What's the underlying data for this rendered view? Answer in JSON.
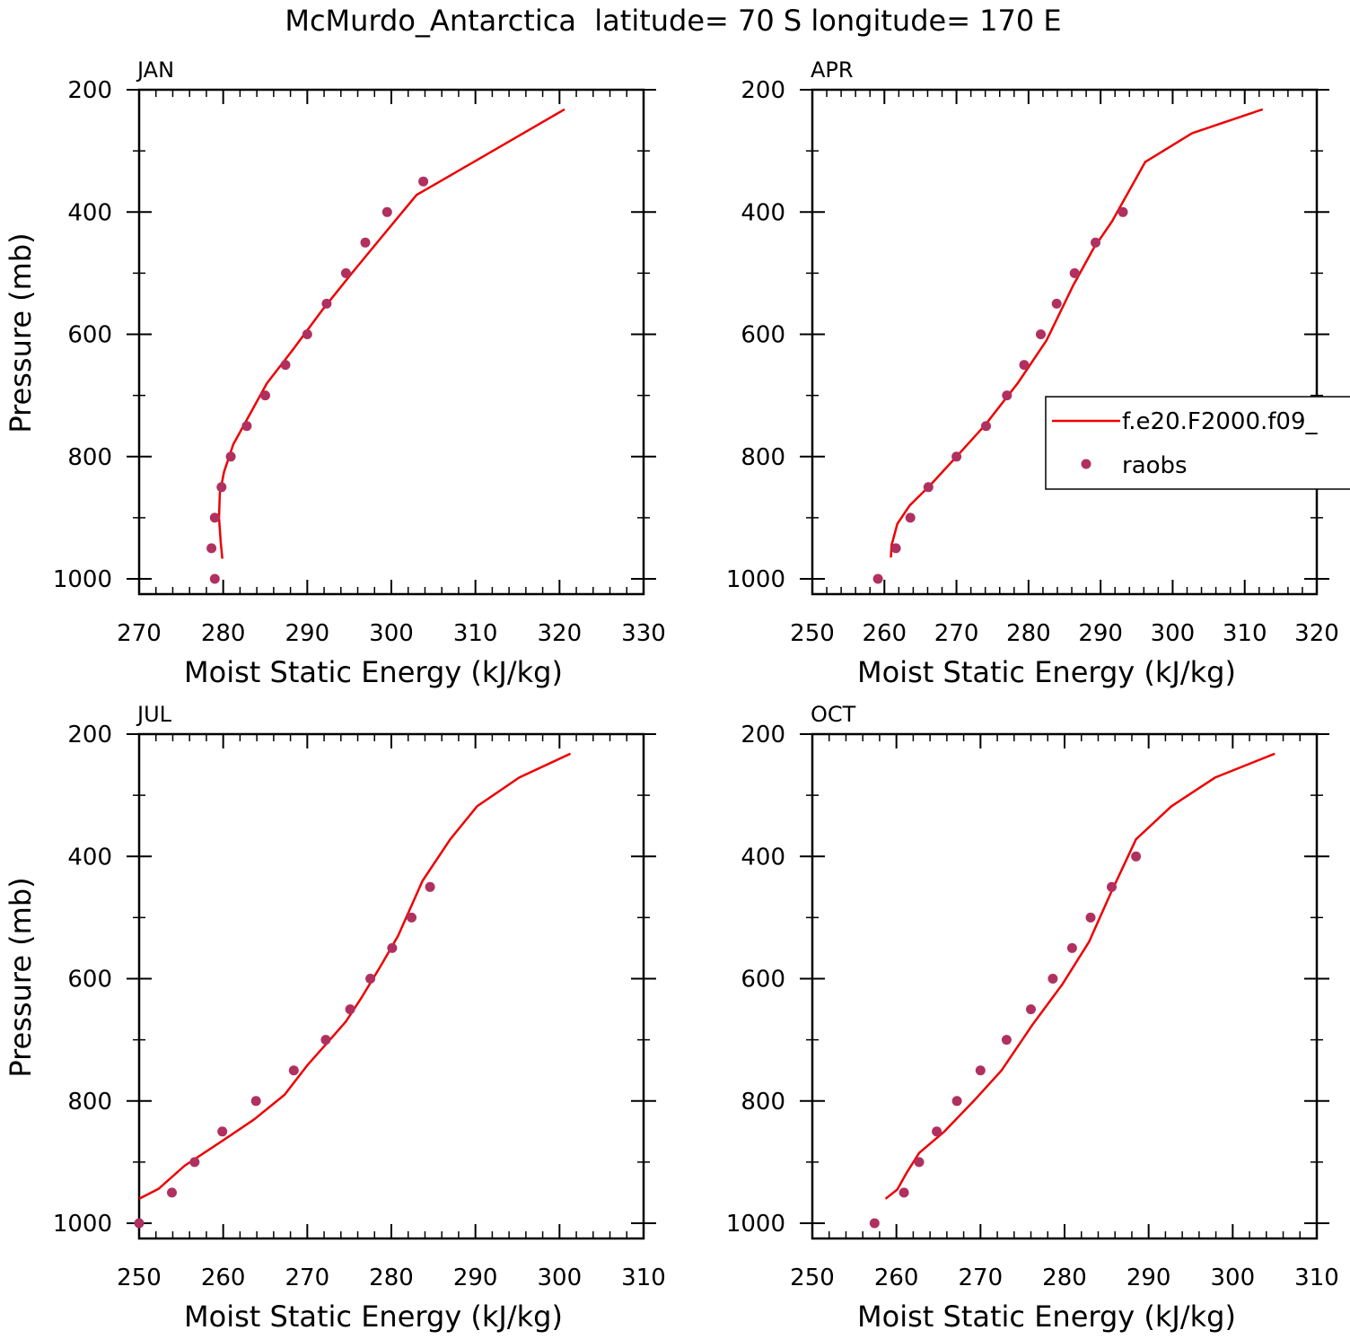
{
  "title": "McMurdo_Antarctica  latitude= 70 S longitude= 170 E",
  "colors": {
    "model": "#ee0000",
    "raobs": "#b03060",
    "axis": "#000000"
  },
  "legend": {
    "model": "f.e20.F2000.f09_",
    "raobs": "raobs"
  },
  "chart_data": [
    {
      "type": "line",
      "panel": "JAN",
      "xlabel": "Moist Static Energy (kJ/kg)",
      "ylabel": "Pressure (mb)",
      "xlim": [
        270,
        330
      ],
      "ylim": [
        1000,
        200
      ],
      "xticks": [
        "270",
        "280",
        "290",
        "300",
        "310",
        "320",
        "330"
      ],
      "yticks": [
        "200",
        "400",
        "600",
        "800",
        "1000"
      ],
      "series": [
        {
          "name": "f.e20.F2000.f09_",
          "style": "line",
          "x": [
            279.9,
            279.7,
            279.5,
            279.6,
            280.1,
            281.2,
            282.8,
            285.2,
            288.3,
            291.8,
            295.3,
            298.9,
            303.0,
            309.8,
            320.6
          ],
          "y": [
            967,
            940,
            900,
            860,
            825,
            780,
            740,
            680,
            625,
            560,
            500,
            440,
            372,
            318,
            232
          ]
        },
        {
          "name": "raobs",
          "style": "points",
          "x": [
            279.0,
            278.6,
            279.0,
            279.8,
            280.9,
            282.8,
            285.0,
            287.4,
            290.0,
            292.3,
            294.6,
            296.9,
            299.5,
            303.8
          ],
          "y": [
            1000,
            950,
            900,
            850,
            800,
            750,
            700,
            650,
            600,
            550,
            500,
            450,
            400,
            350
          ]
        }
      ]
    },
    {
      "type": "line",
      "panel": "APR",
      "xlabel": "Moist Static Energy (kJ/kg)",
      "ylabel": "",
      "xlim": [
        250,
        320
      ],
      "ylim": [
        1000,
        200
      ],
      "xticks": [
        "250",
        "260",
        "270",
        "280",
        "290",
        "300",
        "310",
        "320"
      ],
      "yticks": [
        "200",
        "400",
        "600",
        "800",
        "1000"
      ],
      "series": [
        {
          "name": "f.e20.F2000.f09_",
          "style": "line",
          "x": [
            260.9,
            261.0,
            261.8,
            263.5,
            266.5,
            270.0,
            274.0,
            278.5,
            282.5,
            286.2,
            289.0,
            291.6,
            296.2,
            302.7,
            312.5
          ],
          "y": [
            965,
            945,
            910,
            880,
            845,
            800,
            748,
            680,
            610,
            520,
            460,
            415,
            318,
            271,
            232
          ]
        },
        {
          "name": "raobs",
          "style": "points",
          "x": [
            259.1,
            261.6,
            263.6,
            266.1,
            270.0,
            274.1,
            277.0,
            279.4,
            281.7,
            283.9,
            286.4,
            289.3,
            293.1
          ],
          "y": [
            1000,
            950,
            900,
            850,
            800,
            750,
            700,
            650,
            600,
            550,
            500,
            450,
            400
          ]
        }
      ]
    },
    {
      "type": "line",
      "panel": "JUL",
      "xlabel": "Moist Static Energy (kJ/kg)",
      "ylabel": "Pressure (mb)",
      "xlim": [
        250,
        310
      ],
      "ylim": [
        1000,
        200
      ],
      "xticks": [
        "250",
        "260",
        "270",
        "280",
        "290",
        "300",
        "310"
      ],
      "yticks": [
        "200",
        "400",
        "600",
        "800",
        "1000"
      ],
      "series": [
        {
          "name": "f.e20.F2000.f09_",
          "style": "line",
          "x": [
            250.0,
            252.3,
            255.4,
            259.6,
            263.7,
            267.3,
            270.1,
            272.7,
            274.6,
            276.5,
            278.7,
            280.8,
            283.7,
            287.0,
            290.2,
            295.2,
            301.3
          ],
          "y": [
            960,
            944,
            906,
            868,
            830,
            790,
            740,
            700,
            670,
            630,
            580,
            530,
            440,
            372,
            318,
            271,
            232
          ]
        },
        {
          "name": "raobs",
          "style": "points",
          "x": [
            250.0,
            253.9,
            256.6,
            259.9,
            263.9,
            268.4,
            272.2,
            275.1,
            277.5,
            280.1,
            282.4,
            284.6
          ],
          "y": [
            1000,
            950,
            900,
            850,
            800,
            750,
            700,
            650,
            600,
            550,
            500,
            450
          ]
        }
      ]
    },
    {
      "type": "line",
      "panel": "OCT",
      "xlabel": "Moist Static Energy (kJ/kg)",
      "ylabel": "",
      "xlim": [
        250,
        310
      ],
      "ylim": [
        1000,
        200
      ],
      "xticks": [
        "250",
        "260",
        "270",
        "280",
        "290",
        "300",
        "310"
      ],
      "yticks": [
        "200",
        "400",
        "600",
        "800",
        "1000"
      ],
      "series": [
        {
          "name": "f.e20.F2000.f09_",
          "style": "line",
          "x": [
            258.7,
            260.1,
            261.2,
            262.7,
            265.7,
            269.2,
            272.5,
            276.2,
            279.7,
            282.9,
            285.5,
            288.5,
            292.7,
            297.9,
            305.0
          ],
          "y": [
            960,
            945,
            918,
            885,
            850,
            800,
            750,
            675,
            610,
            540,
            460,
            372,
            318,
            271,
            232
          ]
        },
        {
          "name": "raobs",
          "style": "points",
          "x": [
            257.4,
            260.9,
            262.7,
            264.8,
            267.2,
            270.0,
            273.1,
            276.0,
            278.6,
            280.9,
            283.1,
            285.6,
            288.5
          ],
          "y": [
            1000,
            950,
            900,
            850,
            800,
            750,
            700,
            650,
            600,
            550,
            500,
            450,
            400
          ]
        }
      ]
    }
  ]
}
